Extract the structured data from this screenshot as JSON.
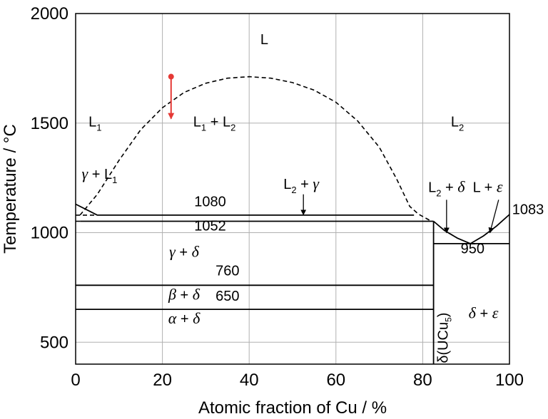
{
  "chart_data": {
    "type": "line",
    "xlabel": "Atomic fraction of Cu / %",
    "ylabel": "Temperature / °C",
    "xlim": [
      0,
      100
    ],
    "ylim": [
      400,
      2000
    ],
    "xticks": [
      "0",
      "20",
      "40",
      "60",
      "80",
      "100"
    ],
    "yticks": [
      "500",
      "1000",
      "1500",
      "2000"
    ],
    "grid": true,
    "series": [
      {
        "kind": "miscibility-gap-dashed",
        "points": [
          [
            1,
            1080
          ],
          [
            5,
            1175
          ],
          [
            10,
            1330
          ],
          [
            15,
            1470
          ],
          [
            20,
            1570
          ],
          [
            25,
            1640
          ],
          [
            30,
            1682
          ],
          [
            35,
            1705
          ],
          [
            40,
            1712
          ],
          [
            45,
            1705
          ],
          [
            50,
            1685
          ],
          [
            55,
            1650
          ],
          [
            60,
            1595
          ],
          [
            65,
            1510
          ],
          [
            70,
            1390
          ],
          [
            74,
            1245
          ],
          [
            77,
            1120
          ],
          [
            79,
            1085
          ],
          [
            82,
            1052
          ]
        ]
      },
      {
        "kind": "solid",
        "points": [
          [
            0,
            1130
          ],
          [
            5,
            1080
          ]
        ]
      },
      {
        "kind": "solid",
        "points": [
          [
            5,
            1080
          ],
          [
            78,
            1080
          ]
        ]
      },
      {
        "kind": "solid",
        "points": [
          [
            1,
            1052
          ],
          [
            82.5,
            1052
          ]
        ]
      },
      {
        "kind": "solid",
        "points": [
          [
            82.5,
            400
          ],
          [
            82.5,
            1052
          ]
        ]
      },
      {
        "kind": "solid",
        "points": [
          [
            82.5,
            1052
          ],
          [
            85,
            1010
          ],
          [
            88,
            975
          ],
          [
            91,
            950
          ]
        ]
      },
      {
        "kind": "solid",
        "points": [
          [
            91,
            950
          ],
          [
            94,
            985
          ],
          [
            97,
            1030
          ],
          [
            100,
            1083
          ]
        ]
      },
      {
        "kind": "solid",
        "points": [
          [
            82.5,
            950
          ],
          [
            100,
            950
          ]
        ]
      },
      {
        "kind": "solid",
        "points": [
          [
            0,
            760
          ],
          [
            82.5,
            760
          ]
        ]
      },
      {
        "kind": "solid",
        "points": [
          [
            0,
            650
          ],
          [
            82.5,
            650
          ]
        ]
      },
      {
        "kind": "dashed",
        "points": [
          [
            0,
            1080
          ],
          [
            5,
            1080
          ]
        ]
      },
      {
        "kind": "dashed",
        "points": [
          [
            0,
            1052
          ],
          [
            1,
            1052
          ]
        ]
      }
    ],
    "temperature_labels": [
      {
        "text": "1080",
        "x": 31,
        "y": 1120
      },
      {
        "text": "1052",
        "x": 31,
        "y": 1010
      },
      {
        "text": "760",
        "x": 35,
        "y": 805
      },
      {
        "text": "650",
        "x": 35,
        "y": 690
      },
      {
        "text": "950",
        "x": 91.5,
        "y": 905
      },
      {
        "text": "1083",
        "x": 108,
        "y": 1085
      }
    ],
    "region_labels": [
      {
        "main": "L",
        "x": 43.5,
        "y": 1860
      },
      {
        "main": "L",
        "sub": "1",
        "x": 4.5,
        "y": 1485
      },
      {
        "main": "L",
        "sub": "1",
        "tail": " + L",
        "sub2": "2",
        "x": 32,
        "y": 1485
      },
      {
        "main": "L",
        "sub": "2",
        "x": 88,
        "y": 1485
      },
      {
        "greek": "γ",
        "tail": " + L",
        "sub2": "1",
        "x": 5.5,
        "y": 1245
      },
      {
        "main": "L",
        "sub": "2",
        "tail": " + ",
        "greek2": "γ",
        "x": 52,
        "y": 1200
      },
      {
        "main": "L",
        "sub": "2",
        "tail": " + ",
        "greek2": "δ",
        "x": 85.5,
        "y": 1185
      },
      {
        "main": "L + ",
        "greek2": "ε",
        "x": 95,
        "y": 1185
      },
      {
        "greek": "γ",
        "tail": " + ",
        "greek2": "δ",
        "x": 25,
        "y": 890
      },
      {
        "greek": "β",
        "tail": " + ",
        "greek2": "δ",
        "x": 25,
        "y": 695
      },
      {
        "greek": "α",
        "tail": " + ",
        "greek2": "δ",
        "x": 25,
        "y": 585
      },
      {
        "greek": "δ",
        "tail": " + ",
        "greek2": "ε",
        "x": 94,
        "y": 610
      }
    ],
    "phase_label": {
      "text": "δ(UCu",
      "sub": "5",
      "close": ")"
    },
    "arrows": [
      {
        "from": [
          52.5,
          1175
        ],
        "to": [
          52.5,
          1082
        ]
      },
      {
        "from": [
          85.5,
          1150
        ],
        "to": [
          85.5,
          1000
        ]
      },
      {
        "from": [
          97.5,
          1150
        ],
        "to": [
          95.5,
          1000
        ]
      }
    ],
    "red_arrow": {
      "from": [
        22,
        1712
      ],
      "to": [
        22,
        1520
      ],
      "color": "#e53935"
    }
  }
}
